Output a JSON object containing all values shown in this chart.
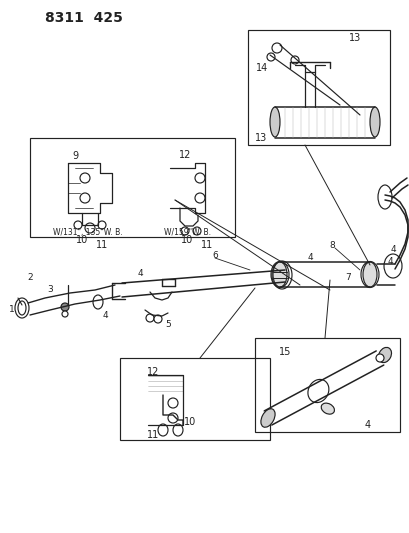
{
  "title": "8311  425",
  "bg_color": "#ffffff",
  "lc": "#222222",
  "figsize": [
    4.1,
    5.33
  ],
  "dpi": 100
}
